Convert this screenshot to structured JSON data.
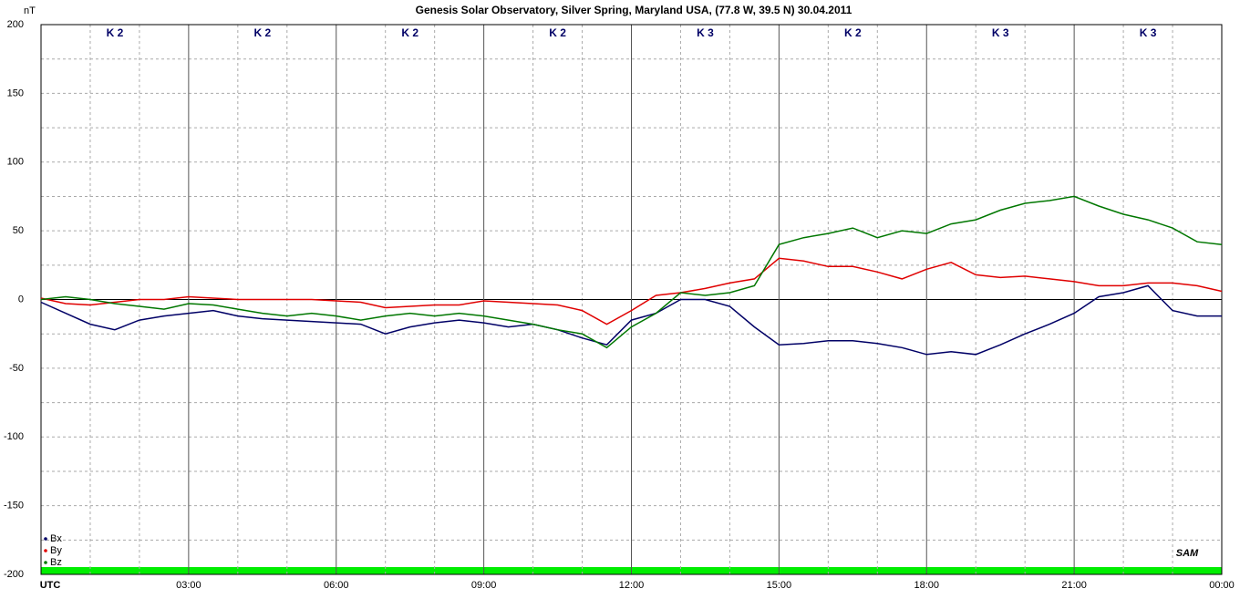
{
  "chart_data": {
    "type": "line",
    "title": "Genesis Solar Observatory, Silver Spring, Maryland USA, (77.8 W, 39.5 N)  30.04.2011",
    "y_label": "nT",
    "logo": "SAM",
    "xlim": [
      0,
      24
    ],
    "xticks": [
      {
        "value": 0,
        "label": "UTC"
      },
      {
        "value": 3,
        "label": "03:00"
      },
      {
        "value": 6,
        "label": "06:00"
      },
      {
        "value": 9,
        "label": "09:00"
      },
      {
        "value": 12,
        "label": "12:00"
      },
      {
        "value": 15,
        "label": "15:00"
      },
      {
        "value": 18,
        "label": "18:00"
      },
      {
        "value": 21,
        "label": "21:00"
      },
      {
        "value": 24,
        "label": "00:00"
      }
    ],
    "minor_xticks": [
      1,
      2,
      4,
      5,
      7,
      8,
      10,
      11,
      13,
      14,
      16,
      17,
      19,
      20,
      22,
      23
    ],
    "ylim": [
      -200,
      200
    ],
    "yticks": [
      -200,
      -150,
      -100,
      -50,
      0,
      50,
      100,
      150,
      200
    ],
    "minor_yticks": [
      -175,
      -125,
      -75,
      -25,
      25,
      75,
      125,
      175
    ],
    "grid": true,
    "legend": "bottom-left",
    "annotations": [
      "K 2",
      "K 2",
      "K 2",
      "K 2",
      "K 3",
      "K 2",
      "K 3",
      "K 3"
    ],
    "x": [
      0,
      0.5,
      1,
      1.5,
      2,
      2.5,
      3,
      3.5,
      4,
      4.5,
      5,
      5.5,
      6,
      6.5,
      7,
      7.5,
      8,
      8.5,
      9,
      9.5,
      10,
      10.5,
      11,
      11.5,
      12,
      12.5,
      13,
      13.5,
      14,
      14.5,
      15,
      15.5,
      16,
      16.5,
      17,
      17.5,
      18,
      18.5,
      19,
      19.5,
      20,
      20.5,
      21,
      21.5,
      22,
      22.5,
      23,
      23.5,
      24
    ],
    "series": [
      {
        "name": "Bx",
        "color": "#000066",
        "values": [
          -2,
          -10,
          -18,
          -22,
          -15,
          -12,
          -10,
          -8,
          -12,
          -14,
          -15,
          -16,
          -17,
          -18,
          -25,
          -20,
          -17,
          -15,
          -17,
          -20,
          -18,
          -22,
          -28,
          -33,
          -15,
          -10,
          0,
          0,
          -5,
          -20,
          -33,
          -32,
          -30,
          -30,
          -32,
          -35,
          -40,
          -38,
          -40,
          -33,
          -25,
          -18,
          -10,
          2,
          5,
          10,
          -8,
          -12,
          -12
        ]
      },
      {
        "name": "By",
        "color": "#e00000",
        "values": [
          1,
          -3,
          -4,
          -2,
          0,
          0,
          2,
          1,
          0,
          0,
          0,
          0,
          -1,
          -2,
          -6,
          -5,
          -4,
          -4,
          -1,
          -2,
          -3,
          -4,
          -8,
          -18,
          -8,
          3,
          5,
          8,
          12,
          15,
          30,
          28,
          24,
          24,
          20,
          15,
          22,
          27,
          18,
          16,
          17,
          15,
          13,
          10,
          10,
          12,
          12,
          10,
          6
        ]
      },
      {
        "name": "Bz",
        "color": "#007700",
        "values": [
          0,
          2,
          0,
          -3,
          -5,
          -7,
          -3,
          -4,
          -7,
          -10,
          -12,
          -10,
          -12,
          -15,
          -12,
          -10,
          -12,
          -10,
          -12,
          -15,
          -18,
          -22,
          -25,
          -35,
          -20,
          -10,
          5,
          3,
          5,
          10,
          40,
          45,
          48,
          52,
          45,
          50,
          48,
          55,
          58,
          65,
          70,
          72,
          75,
          68,
          62,
          58,
          52,
          42,
          40
        ]
      }
    ]
  }
}
